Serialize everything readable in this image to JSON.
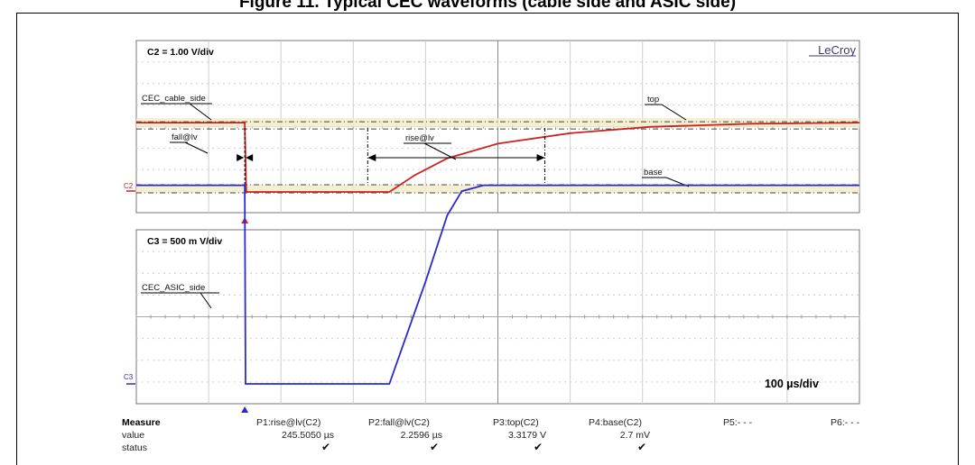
{
  "header_text": "Figure 11. Typical CEC waveforms (cable side and ASIC side)",
  "chart_data": [
    {
      "type": "line",
      "channel": "C2",
      "scale_label": "C2 = 1.00 V/div",
      "volts_per_div": 1.0,
      "brand": "LeCroy",
      "trace_label": "CEC_cable_side",
      "color": "#cc2222",
      "x_unit": "µs",
      "x_range": [
        -150,
        850
      ],
      "y_range_div": [
        -1,
        4
      ],
      "series": [
        {
          "values": [
            [
              -150,
              3.3
            ],
            [
              0,
              3.3
            ],
            [
              2,
              0.0
            ],
            [
              200,
              0.0
            ],
            [
              235,
              0.8
            ],
            [
              280,
              1.6
            ],
            [
              350,
              2.3
            ],
            [
              450,
              2.8
            ],
            [
              560,
              3.1
            ],
            [
              700,
              3.25
            ],
            [
              850,
              3.3
            ]
          ]
        }
      ],
      "annotations": {
        "fall": "fall@lv",
        "rise": "rise@lv",
        "top": "top",
        "base": "base"
      },
      "ground_marker": "C2"
    },
    {
      "type": "line",
      "channel": "C3",
      "scale_label": "C3 = 500 m V/div",
      "volts_per_div": 0.5,
      "trace_label": "CEC_ASIC_side",
      "color": "#2a2ad0",
      "x_unit": "µs",
      "x_range": [
        -150,
        850
      ],
      "timebase_label": "100 µs/div",
      "series": [
        {
          "values": [
            [
              -150,
              3.3
            ],
            [
              0,
              3.3
            ],
            [
              1,
              0.0
            ],
            [
              200,
              0.0
            ],
            [
              250,
              1.7
            ],
            [
              280,
              2.8
            ],
            [
              300,
              3.2
            ],
            [
              330,
              3.3
            ],
            [
              850,
              3.3
            ]
          ]
        }
      ],
      "ground_marker": "C3"
    }
  ],
  "measure": {
    "title": "Measure",
    "row_labels": [
      "value",
      "status"
    ],
    "params": [
      {
        "name": "P1:rise@lv(C2)",
        "value": "245.5050 µs",
        "status": "✔"
      },
      {
        "name": "P2:fall@lv(C2)",
        "value": "2.2596 µs",
        "status": "✔"
      },
      {
        "name": "P3:top(C2)",
        "value": "3.3179 V",
        "status": "✔"
      },
      {
        "name": "P4:base(C2)",
        "value": "2.7 mV",
        "status": "✔"
      },
      {
        "name": "P5:- - -",
        "value": "",
        "status": ""
      },
      {
        "name": "P6:- - -",
        "value": "",
        "status": ""
      }
    ]
  }
}
